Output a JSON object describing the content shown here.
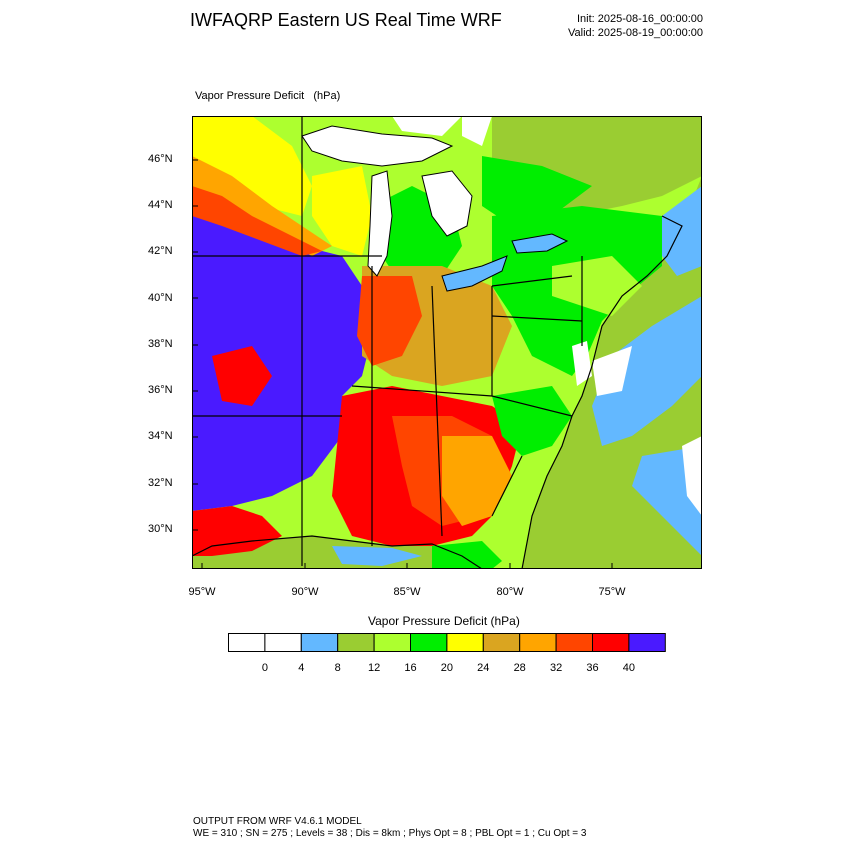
{
  "header": {
    "title": "IWFAQRP Eastern US Real Time WRF",
    "init": "Init: 2025-08-16_00:00:00",
    "valid": "Valid: 2025-08-19_00:00:00"
  },
  "plot": {
    "label": "Vapor Pressure Deficit   (hPa)",
    "lat_labels": [
      "46°N",
      "44°N",
      "42°N",
      "40°N",
      "38°N",
      "36°N",
      "34°N",
      "32°N",
      "30°N"
    ],
    "lon_labels": [
      "95°W",
      "90°W",
      "85°W",
      "80°W",
      "75°W"
    ]
  },
  "colorbar": {
    "title": "Vapor Pressure Deficit  (hPa)",
    "labels": [
      "0",
      "4",
      "8",
      "12",
      "16",
      "20",
      "24",
      "28",
      "32",
      "36",
      "40"
    ],
    "colors": [
      "#ffffff",
      "#ffffff",
      "#63b8ff",
      "#9acd32",
      "#adff2f",
      "#00ee00",
      "#ffff00",
      "#daa520",
      "#ffa500",
      "#ff4500",
      "#ff0000",
      "#4a1aff"
    ]
  },
  "palette": {
    "water": "#63b8ff",
    "snow": "#ffffff",
    "ocean_green": "#9acd32",
    "land_dry": "#4a1aff"
  },
  "footer": {
    "line1": "OUTPUT FROM WRF V4.6.1 MODEL",
    "line2": "WE = 310 ; SN = 275 ; Levels = 38 ; Dis = 8km ; Phys Opt = 8 ; PBL Opt = 1 ; Cu Opt = 3"
  }
}
